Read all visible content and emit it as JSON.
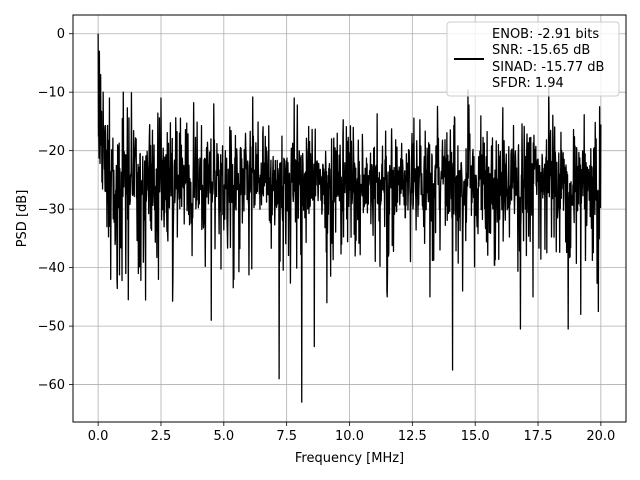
{
  "chart_data": {
    "type": "line",
    "title": "",
    "xlabel": "Frequency [MHz]",
    "ylabel": "PSD [dB]",
    "xlim": [
      -1.0,
      21.0
    ],
    "ylim": [
      -66.4,
      3.2
    ],
    "xticks": [
      0.0,
      2.5,
      5.0,
      7.5,
      10.0,
      12.5,
      15.0,
      17.5,
      20.0
    ],
    "xtick_labels": [
      "0.0",
      "2.5",
      "5.0",
      "7.5",
      "10.0",
      "12.5",
      "15.0",
      "17.5",
      "20.0"
    ],
    "yticks": [
      0,
      -10,
      -20,
      -30,
      -40,
      -50,
      -60
    ],
    "ytick_labels": [
      "0",
      "−10",
      "−20",
      "−30",
      "−40",
      "−50",
      "−60"
    ],
    "grid": true,
    "legend_placement": "top-right",
    "series": [
      {
        "color": "#000000",
        "noise_floor_dB": -25,
        "x_range": [
          0.0,
          20.0
        ],
        "peak": {
          "x": 0.0,
          "y": 0.0
        },
        "dips": [
          {
            "x": 0.35,
            "y": -33
          },
          {
            "x": 0.5,
            "y": -42
          },
          {
            "x": 0.75,
            "y": -42
          },
          {
            "x": 1.1,
            "y": -41
          },
          {
            "x": 1.2,
            "y": -45.5
          },
          {
            "x": 1.6,
            "y": -41
          },
          {
            "x": 2.4,
            "y": -42
          },
          {
            "x": 4.5,
            "y": -49
          },
          {
            "x": 5.4,
            "y": -42
          },
          {
            "x": 7.2,
            "y": -59
          },
          {
            "x": 7.8,
            "y": -46
          },
          {
            "x": 8.1,
            "y": -63
          },
          {
            "x": 8.6,
            "y": -53.5
          },
          {
            "x": 9.1,
            "y": -46
          },
          {
            "x": 11.5,
            "y": -45
          },
          {
            "x": 13.2,
            "y": -45
          },
          {
            "x": 14.1,
            "y": -57.5
          },
          {
            "x": 14.5,
            "y": -44
          },
          {
            "x": 16.8,
            "y": -50.5
          },
          {
            "x": 17.3,
            "y": -45
          },
          {
            "x": 18.7,
            "y": -50.5
          },
          {
            "x": 19.2,
            "y": -48
          },
          {
            "x": 19.9,
            "y": -47.5
          }
        ],
        "spikes": [
          {
            "x": 0.05,
            "y": -3
          },
          {
            "x": 0.1,
            "y": -7
          },
          {
            "x": 0.2,
            "y": -10
          },
          {
            "x": 0.45,
            "y": -11
          },
          {
            "x": 1.0,
            "y": -10
          },
          {
            "x": 2.5,
            "y": -11
          },
          {
            "x": 4.6,
            "y": -12
          },
          {
            "x": 7.8,
            "y": -11
          },
          {
            "x": 19.95,
            "y": -12.5
          }
        ]
      }
    ],
    "legend": {
      "lines": [
        "ENOB: -2.91 bits",
        "SNR: -15.65 dB",
        "SINAD: -15.77 dB",
        "SFDR: 1.94"
      ]
    }
  }
}
